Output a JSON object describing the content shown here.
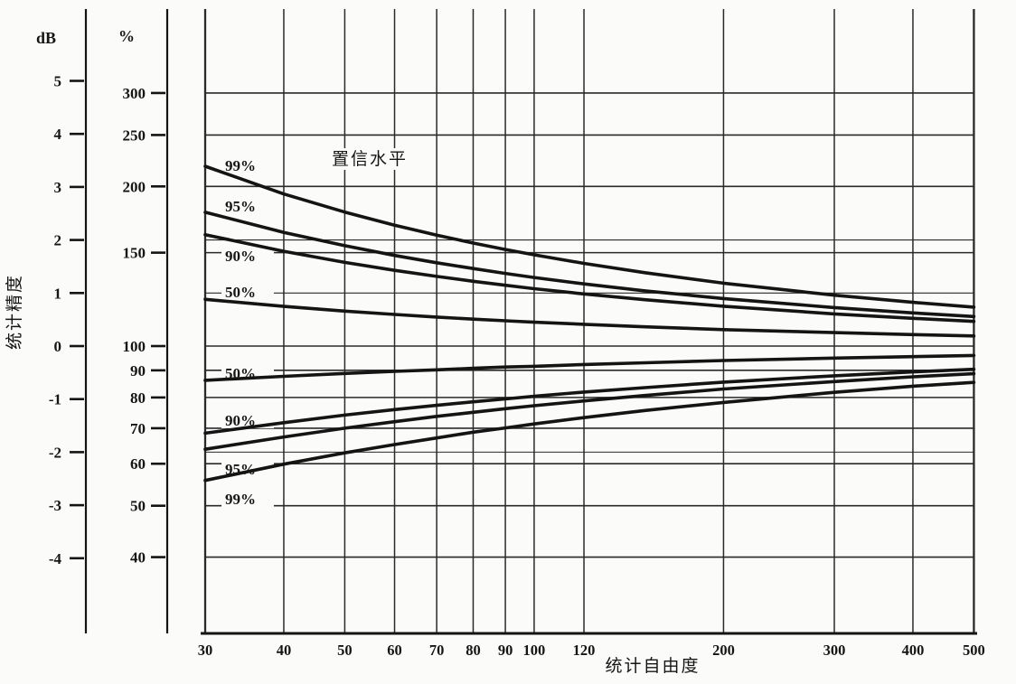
{
  "chart_data": {
    "type": "line",
    "title": "",
    "xlabel": "统计自由度",
    "ylabel": "统计精度",
    "left_axis_unit": "dB",
    "second_axis_unit": "%",
    "legend_title": "置信水平",
    "x_scale": "log",
    "y_scale": "log-percent (linear in dB)",
    "xlim": [
      30,
      500
    ],
    "x_tick_labels": [
      30,
      40,
      50,
      60,
      70,
      80,
      90,
      100,
      120,
      200,
      300,
      400,
      500
    ],
    "db_axis_ticks": [
      5,
      4,
      3,
      2,
      1,
      0,
      -1,
      -2,
      -3,
      -4
    ],
    "percent_axis_ticks": [
      300,
      250,
      200,
      150,
      100,
      90,
      80,
      70,
      60,
      50,
      40
    ],
    "grid_horizontal_percent": [
      300,
      250,
      200,
      158.5,
      150,
      125.9,
      100,
      90,
      80,
      70,
      63.1,
      60,
      50,
      40
    ],
    "x": [
      30,
      40,
      50,
      60,
      70,
      80,
      90,
      100,
      120,
      150,
      200,
      300,
      400,
      500
    ],
    "series": [
      {
        "name": "99% upper confidence limit",
        "confidence": "99%",
        "bound": "upper",
        "values": [
          218.3,
          193.5,
          178.9,
          169.0,
          161.9,
          156.4,
          152.1,
          148.6,
          143.2,
          137.5,
          131.4,
          124.7,
          120.9,
          118.4
        ]
      },
      {
        "name": "95% upper confidence limit",
        "confidence": "95%",
        "bound": "upper",
        "values": [
          178.8,
          163.8,
          154.6,
          148.2,
          143.6,
          140.0,
          137.1,
          134.7,
          131.0,
          127.1,
          122.9,
          118.2,
          115.5,
          113.7
        ]
      },
      {
        "name": "90% upper confidence limit",
        "confidence": "90%",
        "bound": "upper",
        "values": [
          162.2,
          150.9,
          143.8,
          138.9,
          135.3,
          132.5,
          130.2,
          128.3,
          125.4,
          122.3,
          118.9,
          115.0,
          112.8,
          111.3
        ]
      },
      {
        "name": "50% upper confidence limit",
        "confidence": "50%",
        "bound": "upper",
        "values": [
          122.5,
          118.8,
          116.4,
          114.7,
          113.4,
          112.4,
          111.6,
          110.9,
          109.9,
          108.7,
          107.4,
          106.0,
          105.1,
          104.5
        ]
      },
      {
        "name": "50% lower confidence limit",
        "confidence": "50%",
        "bound": "lower",
        "values": [
          86.2,
          87.7,
          88.8,
          89.6,
          90.2,
          90.8,
          91.3,
          91.6,
          92.3,
          93.0,
          93.9,
          94.9,
          95.5,
          96.0
        ]
      },
      {
        "name": "90% lower confidence limit",
        "confidence": "90%",
        "bound": "lower",
        "values": [
          68.5,
          71.7,
          74.1,
          75.9,
          77.3,
          78.5,
          79.5,
          80.4,
          81.9,
          83.5,
          85.5,
          87.9,
          89.4,
          90.4
        ]
      },
      {
        "name": "95% lower confidence limit",
        "confidence": "95%",
        "bound": "lower",
        "values": [
          63.9,
          67.4,
          70.0,
          72.0,
          73.7,
          75.0,
          76.2,
          77.2,
          78.8,
          80.7,
          83.0,
          85.7,
          87.5,
          88.7
        ]
      },
      {
        "name": "99% lower confidence limit",
        "confidence": "99%",
        "bound": "lower",
        "values": [
          55.8,
          59.9,
          62.9,
          65.2,
          67.1,
          68.8,
          70.1,
          71.3,
          73.3,
          75.6,
          78.3,
          81.8,
          84.0,
          85.4
        ]
      }
    ],
    "curve_labels": [
      {
        "text": "99%",
        "bound": "upper"
      },
      {
        "text": "95%",
        "bound": "upper"
      },
      {
        "text": "90%",
        "bound": "upper"
      },
      {
        "text": "50%",
        "bound": "upper"
      },
      {
        "text": "50%",
        "bound": "lower"
      },
      {
        "text": "90%",
        "bound": "lower"
      },
      {
        "text": "95%",
        "bound": "lower"
      },
      {
        "text": "99%",
        "bound": "lower"
      }
    ],
    "line_color": "#141414",
    "grid_color": "#2a2a2a",
    "background_color": "#fbfbf9",
    "legend_position": "inside-top-left",
    "grid": "on"
  }
}
